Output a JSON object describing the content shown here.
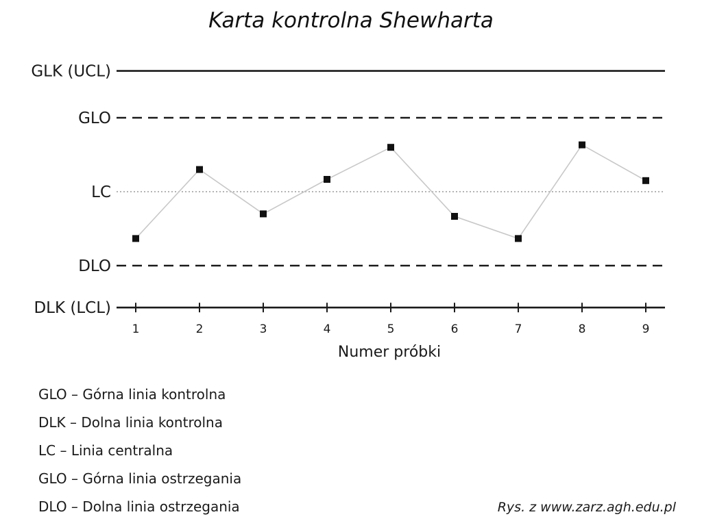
{
  "chart_data": {
    "type": "line",
    "title": "Karta kontrolna Shewharta",
    "xlabel": "Numer próbki",
    "ylabel": "",
    "x": [
      1,
      2,
      3,
      4,
      5,
      6,
      7,
      8,
      9
    ],
    "x_tick_labels": [
      "1",
      "2",
      "3",
      "4",
      "5",
      "6",
      "7",
      "8",
      "9"
    ],
    "series": [
      {
        "values": [
          -1.9,
          0.9,
          -0.9,
          0.5,
          1.8,
          -1.0,
          -1.9,
          1.9,
          0.45
        ]
      }
    ],
    "ylim": [
      -5,
      5
    ],
    "reference_lines": [
      {
        "label": "GLK (UCL)",
        "value": 4.9,
        "style": "solid"
      },
      {
        "label": "GLO",
        "value": 3.0,
        "style": "dashed"
      },
      {
        "label": "LC",
        "value": 0.0,
        "style": "dotted"
      },
      {
        "label": "DLO",
        "value": -3.0,
        "style": "dashed"
      },
      {
        "label": "DLK (LCL)",
        "value": -4.7,
        "style": "solid"
      }
    ],
    "grid": false,
    "colors": {
      "marker": "#111111",
      "line": "#c8c8c8",
      "limit": "#1a1a1a",
      "center": "#9a9a9a"
    }
  },
  "legend": [
    "GLO – Górna linia kontrolna",
    "DLK – Dolna linia kontrolna",
    "LC – Linia centralna",
    "GLO – Górna linia ostrzegania",
    "DLO – Dolna linia ostrzegania"
  ],
  "source": "Rys. z www.zarz.agh.edu.pl"
}
